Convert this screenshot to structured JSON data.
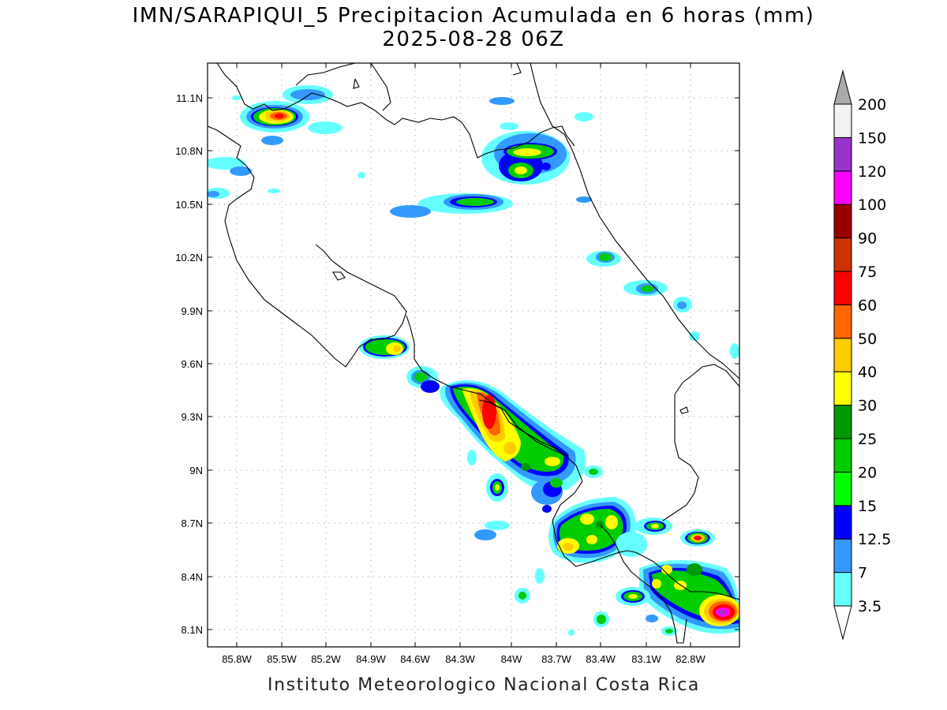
{
  "title": {
    "line1": "IMN/SARAPIQUI_5 Precipitacion Acumulada en 6 horas (mm)",
    "line2": "2025-08-28 06Z"
  },
  "footer": "Instituto Meteorologico Nacional Costa Rica",
  "axes": {
    "lat_ticks": [
      "11.1N",
      "10.8N",
      "10.5N",
      "10.2N",
      "9.9N",
      "9.6N",
      "9.3N",
      "9N",
      "8.7N",
      "8.4N",
      "8.1N"
    ],
    "lon_ticks": [
      "85.8W",
      "85.5W",
      "85.2W",
      "84.9W",
      "84.6W",
      "84.3W",
      "84W",
      "83.7W",
      "83.4W",
      "83.1W",
      "82.8W"
    ],
    "grid": true
  },
  "colorbar": {
    "levels": [
      "3.5",
      "7",
      "12.5",
      "15",
      "20",
      "25",
      "30",
      "40",
      "50",
      "60",
      "75",
      "90",
      "100",
      "120",
      "150",
      "200"
    ],
    "colors": [
      "#ffffff",
      "#66ffff",
      "#3399ff",
      "#0000ff",
      "#00ff00",
      "#00cc00",
      "#009900",
      "#ffff00",
      "#ffcc00",
      "#ff6600",
      "#ff0000",
      "#cc3300",
      "#990000",
      "#ff00ff",
      "#9933cc",
      "#f2f2f2",
      "#aaaaaa"
    ],
    "top_arrow_color": "#aaaaaa",
    "bottom_arrow_color": "#ffffff"
  }
}
